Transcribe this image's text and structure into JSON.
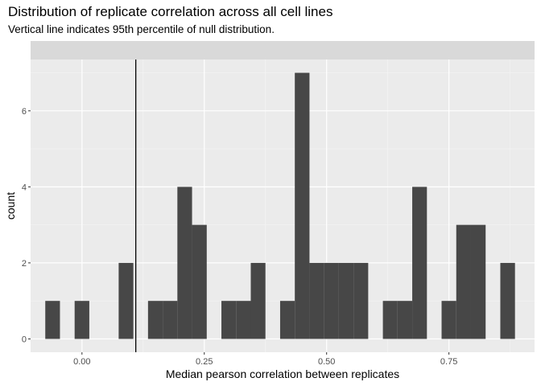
{
  "title": "Distribution of replicate correlation across all cell lines",
  "subtitle": "Vertical line indicates 95th percentile of null distribution.",
  "chart_data": {
    "type": "bar",
    "title": "Distribution of replicate correlation across all cell lines",
    "subtitle": "Vertical line indicates 95th percentile of null distribution.",
    "xlabel": "Median pearson correlation between replicates",
    "ylabel": "count",
    "xlim": [
      -0.105,
      0.925
    ],
    "ylim": [
      -0.35,
      7.35
    ],
    "x_ticks": [
      0.0,
      0.25,
      0.5,
      0.75
    ],
    "x_tick_labels": [
      "0.00",
      "0.25",
      "0.50",
      "0.75"
    ],
    "y_ticks": [
      0,
      2,
      4,
      6
    ],
    "y_tick_labels": [
      "0",
      "2",
      "4",
      "6"
    ],
    "bin_width": 0.03,
    "bin_centers": [
      -0.06,
      -0.03,
      0.0,
      0.03,
      0.06,
      0.09,
      0.12,
      0.15,
      0.18,
      0.21,
      0.24,
      0.27,
      0.3,
      0.33,
      0.36,
      0.39,
      0.42,
      0.45,
      0.48,
      0.51,
      0.54,
      0.57,
      0.6,
      0.63,
      0.66,
      0.69,
      0.72,
      0.75,
      0.78,
      0.81,
      0.84,
      0.87
    ],
    "counts": [
      1,
      0,
      1,
      0,
      0,
      2,
      0,
      1,
      1,
      4,
      3,
      0,
      1,
      1,
      2,
      0,
      1,
      7,
      2,
      2,
      2,
      2,
      0,
      1,
      1,
      4,
      0,
      1,
      3,
      3,
      0,
      2
    ],
    "vline_x": 0.11,
    "grid": true,
    "strip": true
  }
}
